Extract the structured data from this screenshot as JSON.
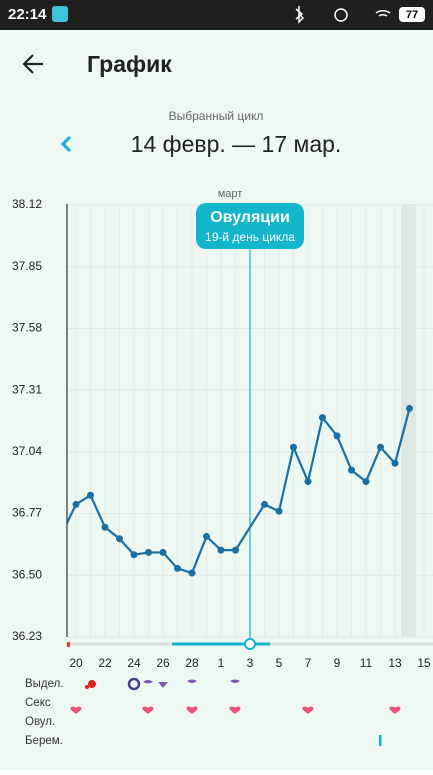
{
  "status_bar": {
    "time": "22:14",
    "battery": "77"
  },
  "header": {
    "title": "График"
  },
  "cycle": {
    "caption": "Выбранный цикл",
    "range": "14 февр. — 17 мар."
  },
  "chart_data": {
    "type": "line",
    "month_label": "март",
    "categories": [
      null,
      "20",
      null,
      "22",
      null,
      "24",
      null,
      "26",
      null,
      "28",
      null,
      "1",
      null,
      "3",
      null,
      "5",
      null,
      "7",
      null,
      "9",
      null,
      "11",
      null,
      "13",
      null,
      "15"
    ],
    "series": [
      {
        "color": "#1a6fa3",
        "values": [
          36.68,
          36.81,
          36.85,
          36.71,
          36.66,
          36.59,
          36.6,
          36.6,
          36.53,
          36.51,
          36.67,
          36.61,
          36.61,
          null,
          36.81,
          36.78,
          37.06,
          36.91,
          37.19,
          37.11,
          36.96,
          36.91,
          37.06,
          36.99,
          37.23,
          null
        ]
      }
    ],
    "ylim": [
      36.23,
      38.12
    ],
    "yticks": [
      36.23,
      {
        "value": 36.5,
        "label": "36.50"
      },
      36.77,
      37.04,
      37.31,
      37.58,
      37.85,
      38.12
    ],
    "grid": true,
    "connect_gaps": true,
    "annotation": {
      "x": "3",
      "title": "Овуляции",
      "subtitle": "19-й день цикла",
      "color": "#12b5c9"
    }
  },
  "tracks": [
    "Выдел.",
    "Секс",
    "Овул.",
    "Берем."
  ]
}
